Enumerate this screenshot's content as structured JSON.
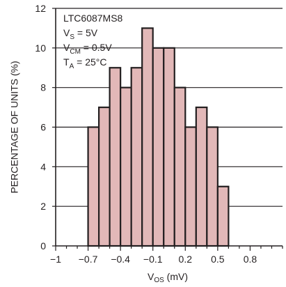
{
  "chart_data": {
    "type": "bar",
    "subtype": "histogram",
    "title": "",
    "xlabel": {
      "main": "V",
      "sub": "OS",
      "unit": " (mV)"
    },
    "ylabel": "PERCENTAGE OF UNITS (%)",
    "xlim": [
      -1,
      1.1
    ],
    "ylim": [
      0,
      12
    ],
    "xticks": [
      -1,
      -0.7,
      -0.4,
      -0.1,
      0.2,
      0.5,
      0.8
    ],
    "xtick_labels": [
      "−1",
      "−0.7",
      "−0.4",
      "−0.1",
      "0.2",
      "0.5",
      "0.8"
    ],
    "yticks": [
      0,
      2,
      4,
      6,
      8,
      10,
      12
    ],
    "ytick_labels": [
      "0",
      "2",
      "4",
      "6",
      "8",
      "10",
      "12"
    ],
    "bin_width": 0.1,
    "bins": [
      {
        "start": -0.7,
        "value": 6
      },
      {
        "start": -0.6,
        "value": 7
      },
      {
        "start": -0.5,
        "value": 9
      },
      {
        "start": -0.4,
        "value": 8
      },
      {
        "start": -0.3,
        "value": 9
      },
      {
        "start": -0.2,
        "value": 11
      },
      {
        "start": -0.1,
        "value": 10
      },
      {
        "start": 0.0,
        "value": 10
      },
      {
        "start": 0.1,
        "value": 8
      },
      {
        "start": 0.2,
        "value": 6
      },
      {
        "start": 0.3,
        "value": 7
      },
      {
        "start": 0.4,
        "value": 6
      },
      {
        "start": 0.5,
        "value": 3
      }
    ],
    "grid": "horizontal",
    "annotations": [
      {
        "main": "LTC6087MS8",
        "sub": "",
        "rest": ""
      },
      {
        "main": "V",
        "sub": "S",
        "rest": " = 5V"
      },
      {
        "main": "V",
        "sub": "CM",
        "rest": " = 0.5V"
      },
      {
        "main": "T",
        "sub": "A",
        "rest": " = 25°C"
      }
    ],
    "colors": {
      "bar_fill": "#e2b8b8",
      "bar_stroke": "#231f20",
      "axis": "#231f20",
      "grid": "#231f20"
    }
  }
}
